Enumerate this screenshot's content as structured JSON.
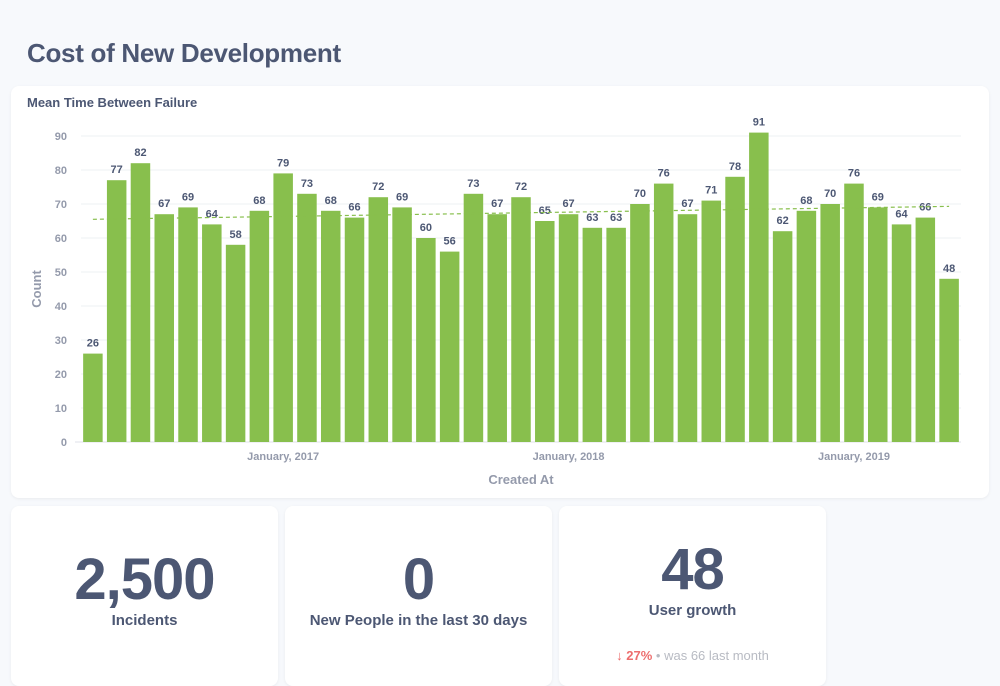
{
  "dashboard": {
    "title": "Cost of New Development"
  },
  "chart_card": {
    "title": "Mean Time Between Failure"
  },
  "chart_data": {
    "type": "bar",
    "title": "Mean Time Between Failure",
    "xlabel": "Created At",
    "ylabel": "Count",
    "ylim": [
      0,
      90
    ],
    "yticks": [
      0,
      10,
      20,
      30,
      40,
      50,
      60,
      70,
      80,
      90
    ],
    "x_tick_labels": [
      "January, 2017",
      "January, 2018",
      "January, 2019"
    ],
    "values": [
      26,
      77,
      82,
      67,
      69,
      64,
      58,
      68,
      79,
      73,
      68,
      66,
      72,
      69,
      60,
      56,
      73,
      67,
      72,
      65,
      67,
      63,
      63,
      70,
      76,
      67,
      71,
      78,
      91,
      62,
      68,
      70,
      76,
      69,
      64,
      66,
      48
    ],
    "trendline": {
      "start": 65.5,
      "end": 69.3
    },
    "grid": true,
    "legend": "none"
  },
  "kpis": [
    {
      "value": "2,500",
      "label": "Incidents"
    },
    {
      "value": "0",
      "label": "New People in the last 30 days"
    },
    {
      "value": "48",
      "label": "User growth",
      "change_arrow": "↓",
      "change_pct": "27%",
      "change_note": "• was 66 last month",
      "change_color": "#ed6e6e"
    }
  ],
  "colors": {
    "bar": "#88bf4d",
    "text": "#4c5773",
    "muted": "#949aab",
    "background": "#f7f9fc"
  }
}
